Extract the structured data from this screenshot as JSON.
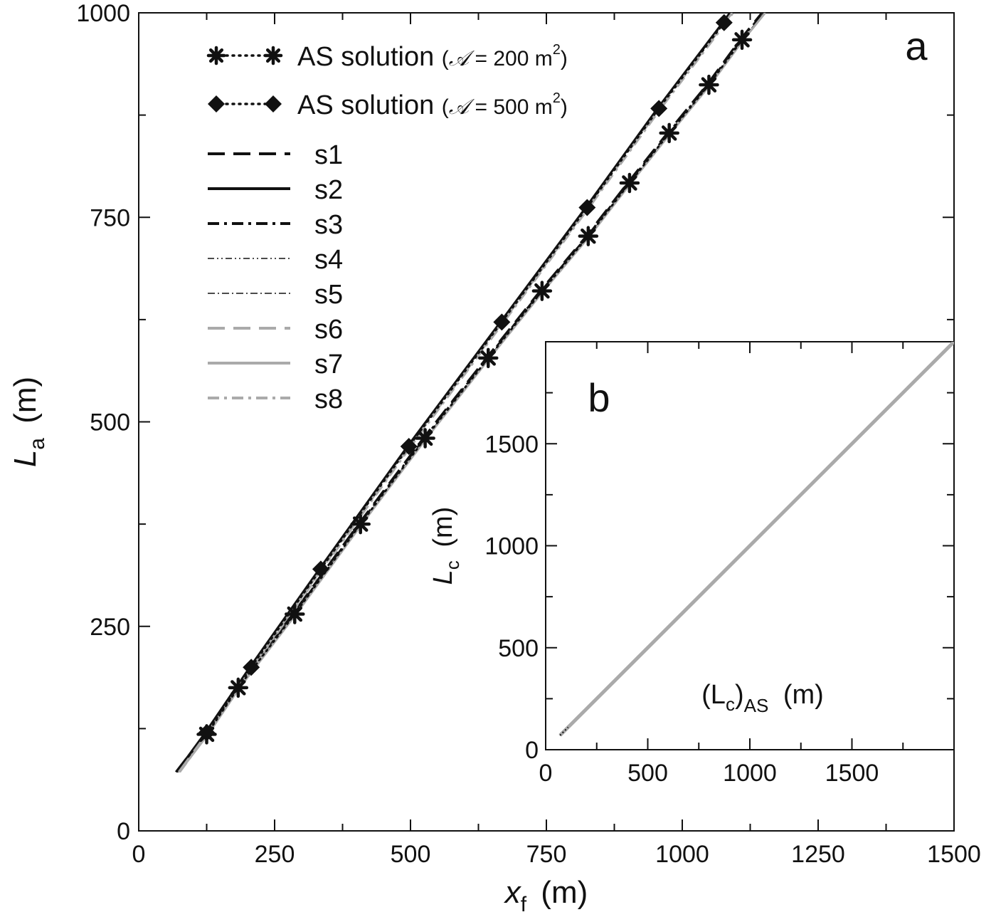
{
  "chart_data": [
    {
      "panel": "a",
      "type": "line",
      "xlabel": "x",
      "xlabel_sub": "f",
      "xlabel_unit": "(m)",
      "ylabel": "L",
      "ylabel_sub": "a",
      "ylabel_unit": "(m)",
      "xlim": [
        0,
        1500
      ],
      "ylim": [
        0,
        1000
      ],
      "xticks": [
        "0",
        "250",
        "500",
        "750",
        "1000",
        "1250",
        "1500"
      ],
      "yticks": [
        "0",
        "250",
        "500",
        "750",
        "1000"
      ],
      "grid": false,
      "legend_position": "top-left",
      "marker_series": [
        {
          "name_pre": "AS solution (",
          "name_sym": "𝒜",
          "name_mid": " = 200 m",
          "name_sup": "2",
          "name_post": ")",
          "marker": "asterisk",
          "line": "dotted",
          "color": "#111111",
          "x": [
            125,
            183,
            287,
            408,
            527,
            643,
            742,
            827,
            903,
            976,
            1049,
            1110
          ],
          "y": [
            118,
            175,
            265,
            375,
            480,
            578,
            660,
            727,
            792,
            853,
            912,
            967
          ]
        },
        {
          "name_pre": "AS solution (",
          "name_sym": "𝒜",
          "name_mid": " = 500 m",
          "name_sup": "2",
          "name_post": ")",
          "marker": "diamond",
          "line": "dotted",
          "color": "#111111",
          "x": [
            125,
            207,
            335,
            497,
            668,
            825,
            957,
            1077
          ],
          "y": [
            120,
            200,
            320,
            470,
            622,
            762,
            883,
            988
          ]
        }
      ],
      "line_series": [
        {
          "name": "s1",
          "color": "#111111",
          "dash": "24 12",
          "width": 4
        },
        {
          "name": "s2",
          "color": "#111111",
          "dash": "",
          "width": 4
        },
        {
          "name": "s3",
          "color": "#111111",
          "dash": "16 7 4 7",
          "width": 4
        },
        {
          "name": "s4",
          "color": "#111111",
          "dash": "9 4 2 4 2 4",
          "width": 1.6
        },
        {
          "name": "s5",
          "color": "#111111",
          "dash": "10 4 2 4",
          "width": 1.6
        },
        {
          "name": "s6",
          "color": "#aaaaaa",
          "dash": "24 12",
          "width": 4
        },
        {
          "name": "s7",
          "color": "#aaaaaa",
          "dash": "",
          "width": 4
        },
        {
          "name": "s8",
          "color": "#aaaaaa",
          "dash": "16 7 4 7",
          "width": 4
        }
      ],
      "curve_low_x": [
        72,
        125,
        183,
        287,
        408,
        527,
        643,
        742,
        827,
        903,
        976,
        1049,
        1110,
        1150
      ],
      "curve_low_y": [
        72,
        118,
        175,
        265,
        375,
        480,
        578,
        660,
        727,
        792,
        853,
        912,
        967,
        1000
      ],
      "curve_high_x": [
        72,
        125,
        207,
        335,
        497,
        668,
        825,
        957,
        1077,
        1090
      ],
      "curve_high_y": [
        72,
        120,
        200,
        320,
        470,
        622,
        762,
        883,
        988,
        1000
      ]
    },
    {
      "panel": "b",
      "type": "line",
      "xlabel_pre": "(L",
      "xlabel_sub": "c",
      "xlabel_post": ")",
      "xlabel_sub2": "AS",
      "xlabel_unit": "(m)",
      "ylabel": "L",
      "ylabel_sub": "c",
      "ylabel_unit": "(m)",
      "xlim": [
        0,
        2000
      ],
      "ylim": [
        0,
        2000
      ],
      "xticks": [
        "0",
        "500",
        "1000",
        "1500"
      ],
      "yticks": [
        "0",
        "500",
        "1000",
        "1500"
      ],
      "series": [
        {
          "color": "#aaaaaa",
          "x": [
            70,
            2000
          ],
          "y": [
            70,
            2000
          ]
        }
      ]
    }
  ]
}
